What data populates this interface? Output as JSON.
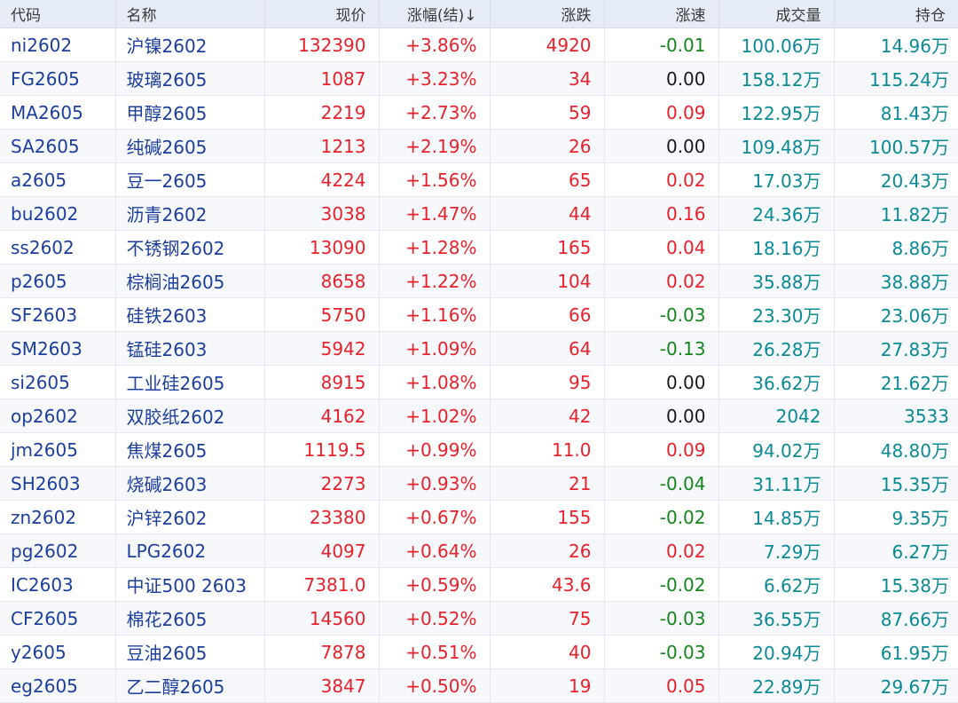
{
  "header": {
    "code": "代码",
    "name": "名称",
    "price": "现价",
    "change_pct": "涨幅(结)↓",
    "change": "涨跌",
    "speed": "涨速",
    "volume": "成交量",
    "open_interest": "持仓"
  },
  "colors": {
    "up": "#e8212b",
    "down": "#15851d",
    "neutral": "#1a1a1a",
    "volume": "#0a8996",
    "link": "#1c3f9e"
  },
  "rows": [
    {
      "code": "ni2602",
      "name": "沪镍2602",
      "price": "132390",
      "change_pct": "+3.86%",
      "change": "4920",
      "speed": "-0.01",
      "volume": "100.06万",
      "open_interest": "14.96万"
    },
    {
      "code": "FG2605",
      "name": "玻璃2605",
      "price": "1087",
      "change_pct": "+3.23%",
      "change": "34",
      "speed": "0.00",
      "volume": "158.12万",
      "open_interest": "115.24万"
    },
    {
      "code": "MA2605",
      "name": "甲醇2605",
      "price": "2219",
      "change_pct": "+2.73%",
      "change": "59",
      "speed": "0.09",
      "volume": "122.95万",
      "open_interest": "81.43万"
    },
    {
      "code": "SA2605",
      "name": "纯碱2605",
      "price": "1213",
      "change_pct": "+2.19%",
      "change": "26",
      "speed": "0.00",
      "volume": "109.48万",
      "open_interest": "100.57万"
    },
    {
      "code": "a2605",
      "name": "豆一2605",
      "price": "4224",
      "change_pct": "+1.56%",
      "change": "65",
      "speed": "0.02",
      "volume": "17.03万",
      "open_interest": "20.43万"
    },
    {
      "code": "bu2602",
      "name": "沥青2602",
      "price": "3038",
      "change_pct": "+1.47%",
      "change": "44",
      "speed": "0.16",
      "volume": "24.36万",
      "open_interest": "11.82万"
    },
    {
      "code": "ss2602",
      "name": "不锈钢2602",
      "price": "13090",
      "change_pct": "+1.28%",
      "change": "165",
      "speed": "0.04",
      "volume": "18.16万",
      "open_interest": "8.86万"
    },
    {
      "code": "p2605",
      "name": "棕榈油2605",
      "price": "8658",
      "change_pct": "+1.22%",
      "change": "104",
      "speed": "0.02",
      "volume": "35.88万",
      "open_interest": "38.88万"
    },
    {
      "code": "SF2603",
      "name": "硅铁2603",
      "price": "5750",
      "change_pct": "+1.16%",
      "change": "66",
      "speed": "-0.03",
      "volume": "23.30万",
      "open_interest": "23.06万"
    },
    {
      "code": "SM2603",
      "name": "锰硅2603",
      "price": "5942",
      "change_pct": "+1.09%",
      "change": "64",
      "speed": "-0.13",
      "volume": "26.28万",
      "open_interest": "27.83万"
    },
    {
      "code": "si2605",
      "name": "工业硅2605",
      "price": "8915",
      "change_pct": "+1.08%",
      "change": "95",
      "speed": "0.00",
      "volume": "36.62万",
      "open_interest": "21.62万"
    },
    {
      "code": "op2602",
      "name": "双胶纸2602",
      "price": "4162",
      "change_pct": "+1.02%",
      "change": "42",
      "speed": "0.00",
      "volume": "2042",
      "open_interest": "3533"
    },
    {
      "code": "jm2605",
      "name": "焦煤2605",
      "price": "1119.5",
      "change_pct": "+0.99%",
      "change": "11.0",
      "speed": "0.09",
      "volume": "94.02万",
      "open_interest": "48.80万"
    },
    {
      "code": "SH2603",
      "name": "烧碱2603",
      "price": "2273",
      "change_pct": "+0.93%",
      "change": "21",
      "speed": "-0.04",
      "volume": "31.11万",
      "open_interest": "15.35万"
    },
    {
      "code": "zn2602",
      "name": "沪锌2602",
      "price": "23380",
      "change_pct": "+0.67%",
      "change": "155",
      "speed": "-0.02",
      "volume": "14.85万",
      "open_interest": "9.35万"
    },
    {
      "code": "pg2602",
      "name": "LPG2602",
      "price": "4097",
      "change_pct": "+0.64%",
      "change": "26",
      "speed": "0.02",
      "volume": "7.29万",
      "open_interest": "6.27万"
    },
    {
      "code": "IC2603",
      "name": "中证500 2603",
      "price": "7381.0",
      "change_pct": "+0.59%",
      "change": "43.6",
      "speed": "-0.02",
      "volume": "6.62万",
      "open_interest": "15.38万"
    },
    {
      "code": "CF2605",
      "name": "棉花2605",
      "price": "14560",
      "change_pct": "+0.52%",
      "change": "75",
      "speed": "-0.03",
      "volume": "36.55万",
      "open_interest": "87.66万"
    },
    {
      "code": "y2605",
      "name": "豆油2605",
      "price": "7878",
      "change_pct": "+0.51%",
      "change": "40",
      "speed": "-0.03",
      "volume": "20.94万",
      "open_interest": "61.95万"
    },
    {
      "code": "eg2605",
      "name": "乙二醇2605",
      "price": "3847",
      "change_pct": "+0.50%",
      "change": "19",
      "speed": "0.05",
      "volume": "22.89万",
      "open_interest": "29.67万"
    }
  ]
}
